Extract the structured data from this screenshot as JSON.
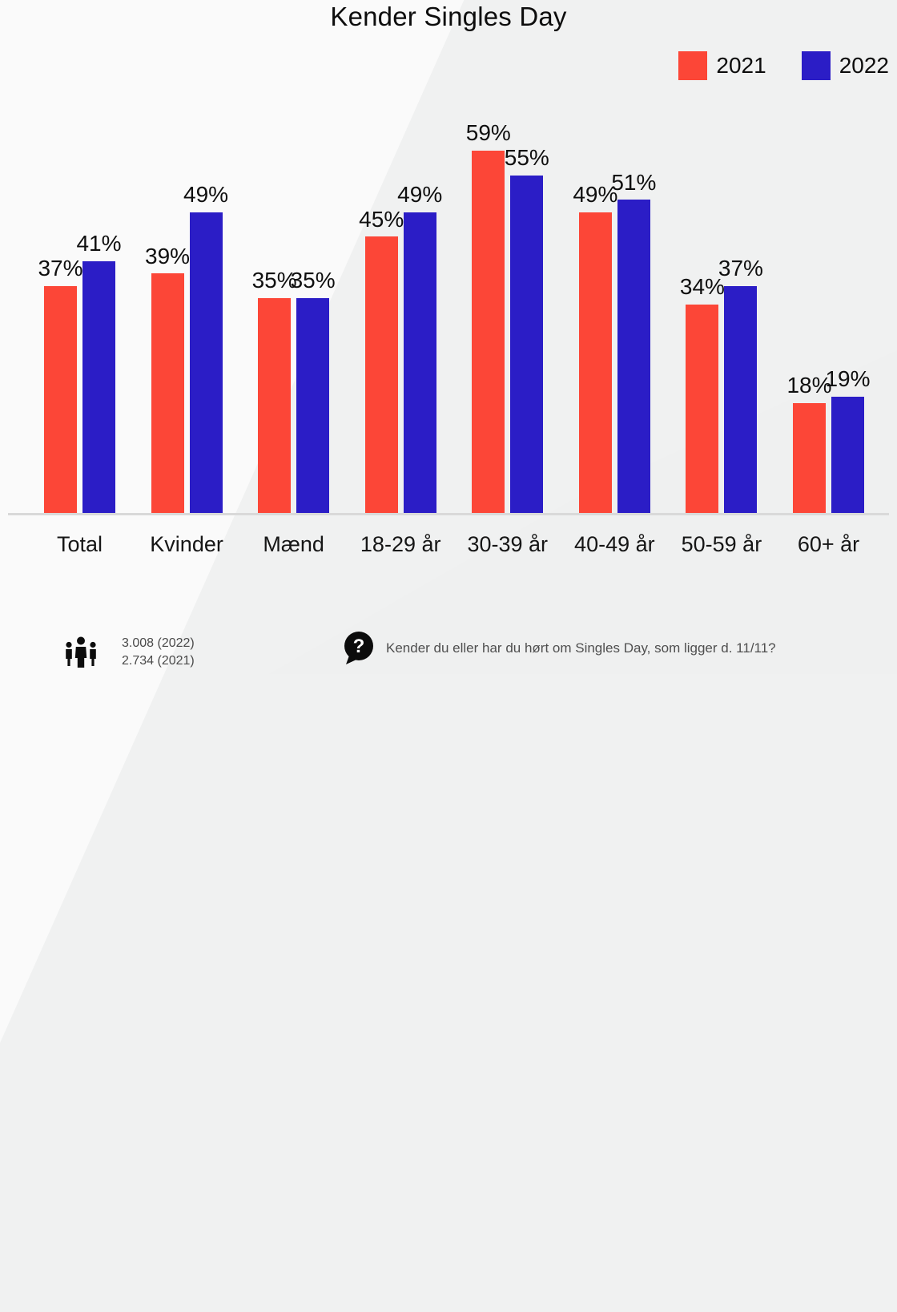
{
  "title": "Kender Singles Day",
  "chart_data": {
    "type": "bar",
    "title": "Kender Singles Day",
    "categories": [
      "Total",
      "Kvinder",
      "Mænd",
      "18-29 år",
      "30-39 år",
      "40-49 år",
      "50-59 år",
      "60+ år"
    ],
    "series": [
      {
        "name": "2021",
        "color": "#fc4637",
        "values": [
          37,
          39,
          35,
          45,
          59,
          49,
          34,
          18
        ]
      },
      {
        "name": "2022",
        "color": "#2b1dc6",
        "values": [
          41,
          49,
          35,
          49,
          55,
          51,
          37,
          19
        ]
      }
    ],
    "value_suffix": "%",
    "value_labels_shown": true,
    "ylim": [
      0,
      65
    ],
    "grid": false,
    "legend_position": "top-right",
    "axis_line_color": "#d9d9d9"
  },
  "legend": {
    "items": [
      {
        "label": "2021",
        "swatch_color": "#fc4637"
      },
      {
        "label": "2022",
        "swatch_color": "#2b1dc6"
      }
    ]
  },
  "footer": {
    "people_icon": "people-icon",
    "sample_line1": "3.008 (2022)",
    "sample_line2": "2.734 (2021)",
    "question_icon": "question-bubble-icon",
    "question": "Kender du eller har du hørt om Singles Day, som ligger d. 11/11?"
  }
}
